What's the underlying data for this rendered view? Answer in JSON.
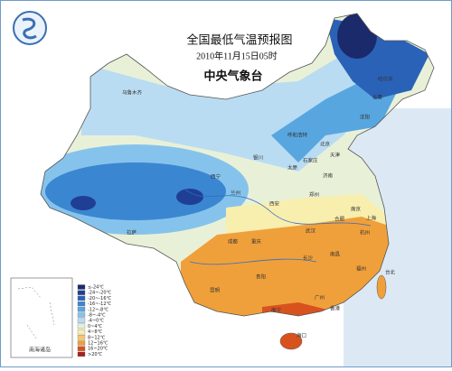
{
  "header": {
    "title": "全国最低气温预报图",
    "date": "2010年11月15日05时",
    "issuer": "中央气象台"
  },
  "legend": [
    {
      "label": "≤-24℃",
      "color": "#1b2a6b"
    },
    {
      "label": "-24~-20℃",
      "color": "#1f3f95"
    },
    {
      "label": "-20~-16℃",
      "color": "#2a62b8"
    },
    {
      "label": "-16~-12℃",
      "color": "#3b86d0"
    },
    {
      "label": "-12~-8℃",
      "color": "#58a6e0"
    },
    {
      "label": "-8~-4℃",
      "color": "#86c3ec"
    },
    {
      "label": "-4~0℃",
      "color": "#b9dcf2"
    },
    {
      "label": "0~4℃",
      "color": "#e8f1d8"
    },
    {
      "label": "4~8℃",
      "color": "#f8eeae"
    },
    {
      "label": "8~12℃",
      "color": "#f6c86a"
    },
    {
      "label": "12~16℃",
      "color": "#f0a03a"
    },
    {
      "label": "16~20℃",
      "color": "#d8521e"
    },
    {
      "label": ">20℃",
      "color": "#a8201a"
    }
  ],
  "cities": [
    "乌鲁木齐",
    "哈尔滨",
    "长春",
    "沈阳",
    "呼和浩特",
    "北京",
    "天津",
    "石家庄",
    "太原",
    "济南",
    "银川",
    "西宁",
    "兰州",
    "西安",
    "郑州",
    "拉萨",
    "成都",
    "重庆",
    "武汉",
    "合肥",
    "南京",
    "上海",
    "杭州",
    "长沙",
    "南昌",
    "贵阳",
    "昆明",
    "福州",
    "台北",
    "南宁",
    "广州",
    "香港",
    "海口"
  ],
  "inset": "南海诸岛"
}
